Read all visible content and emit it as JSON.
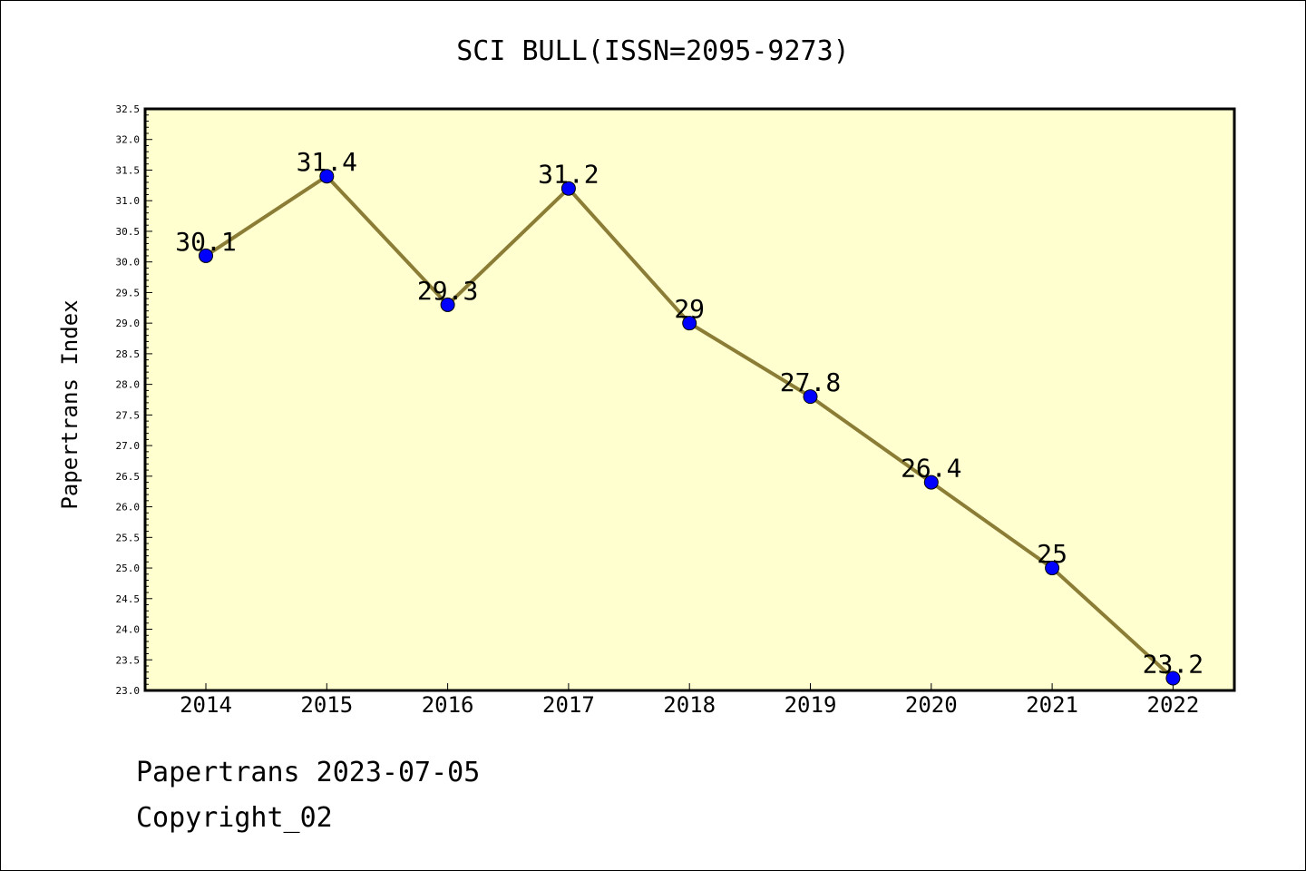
{
  "chart_data": {
    "type": "line",
    "title": "SCI BULL(ISSN=2095-9273)",
    "xlabel": "",
    "ylabel": "Papertrans Index",
    "categories": [
      "2014",
      "2015",
      "2016",
      "2017",
      "2018",
      "2019",
      "2020",
      "2021",
      "2022"
    ],
    "series": [
      {
        "values": [
          30.1,
          31.4,
          29.3,
          31.2,
          29.0,
          27.8,
          26.4,
          25.0,
          23.2
        ],
        "labels": [
          "30.1",
          "31.4",
          "29.3",
          "31.2",
          "29",
          "27.8",
          "26.4",
          "25",
          "23.2"
        ]
      }
    ],
    "ylim": [
      23.0,
      32.5
    ],
    "yticks": [
      "23.0",
      "23.5",
      "24.0",
      "24.5",
      "25.0",
      "25.5",
      "26.0",
      "26.5",
      "27.0",
      "27.5",
      "28.0",
      "28.5",
      "29.0",
      "29.5",
      "30.0",
      "30.5",
      "31.0",
      "31.5",
      "32.0",
      "32.5"
    ],
    "grid": false,
    "colors": {
      "plot_background": "#ffffd0",
      "line": "#8b7d35",
      "marker": "#0000ff"
    }
  },
  "footer": {
    "line1": "Papertrans 2023-07-05",
    "line2": "Copyright_02"
  }
}
